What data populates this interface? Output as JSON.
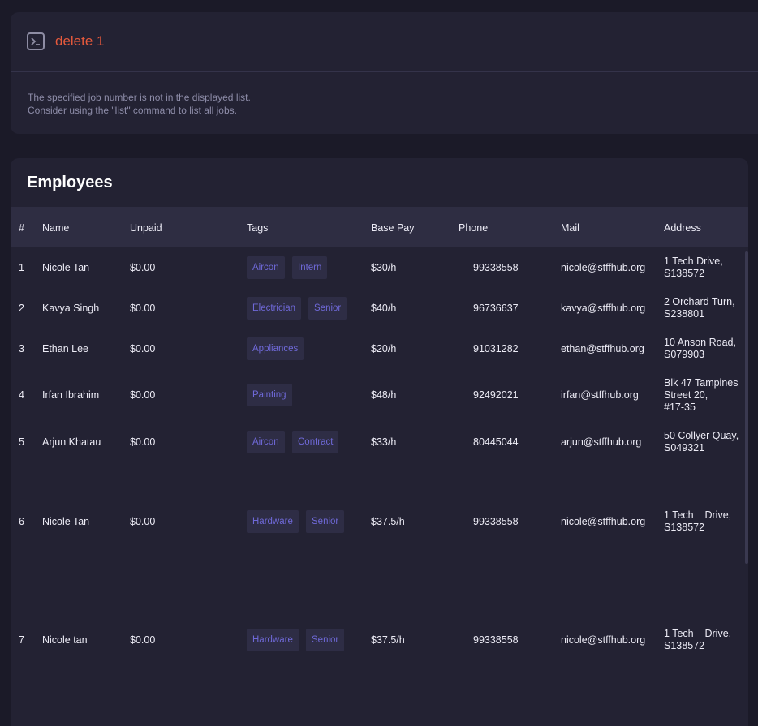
{
  "command": {
    "value": "delete 1",
    "feedback_line1": "The specified job number is not in the displayed list.",
    "feedback_line2": "Consider using the \"list\" command to list all jobs."
  },
  "employees": {
    "title": "Employees",
    "columns": [
      "#",
      "Name",
      "Unpaid",
      "Tags",
      "Base Pay",
      "Phone",
      "Mail",
      "Address"
    ],
    "rows": [
      {
        "index": "1",
        "name": "Nicole Tan",
        "unpaid": "$0.00",
        "tags": [
          "Aircon",
          "Intern"
        ],
        "pay": "$30/h",
        "phone": "99338558",
        "mail": "nicole@stffhub.org",
        "address": [
          "1 Tech Drive,",
          "S138572"
        ]
      },
      {
        "index": "2",
        "name": "Kavya Singh",
        "unpaid": "$0.00",
        "tags": [
          "Electrician",
          "Senior"
        ],
        "pay": "$40/h",
        "phone": "96736637",
        "mail": "kavya@stffhub.org",
        "address": [
          "2 Orchard Turn,",
          "S238801"
        ]
      },
      {
        "index": "3",
        "name": "Ethan Lee",
        "unpaid": "$0.00",
        "tags": [
          "Appliances"
        ],
        "pay": "$20/h",
        "phone": "91031282",
        "mail": "ethan@stffhub.org",
        "address": [
          "10 Anson Road,",
          "S079903"
        ]
      },
      {
        "index": "4",
        "name": "Irfan Ibrahim",
        "unpaid": "$0.00",
        "tags": [
          "Painting"
        ],
        "pay": "$48/h",
        "phone": "92492021",
        "mail": "irfan@stffhub.org",
        "address": [
          "Blk 47 Tampines",
          "Street 20,",
          "#17-35"
        ]
      },
      {
        "index": "5",
        "name": "Arjun Khatau",
        "unpaid": "$0.00",
        "tags": [
          "Aircon",
          "Contract"
        ],
        "pay": "$33/h",
        "phone": "80445044",
        "mail": "arjun@stffhub.org",
        "address": [
          "50 Collyer Quay,",
          "S049321"
        ]
      },
      {
        "index": "6",
        "name": "Nicole Tan",
        "unpaid": "$0.00",
        "tags": [
          "Hardware",
          "Senior"
        ],
        "pay": "$37.5/h",
        "phone": "99338558",
        "mail": "nicole@stffhub.org",
        "address": [
          "1 Tech    Drive,",
          "S138572"
        ]
      },
      {
        "index": "7",
        "name": "Nicole tan",
        "unpaid": "$0.00",
        "tags": [
          "Hardware",
          "Senior"
        ],
        "pay": "$37.5/h",
        "phone": "99338558",
        "mail": "nicole@stffhub.org",
        "address": [
          "1 Tech    Drive,",
          "S138572"
        ]
      }
    ]
  }
}
